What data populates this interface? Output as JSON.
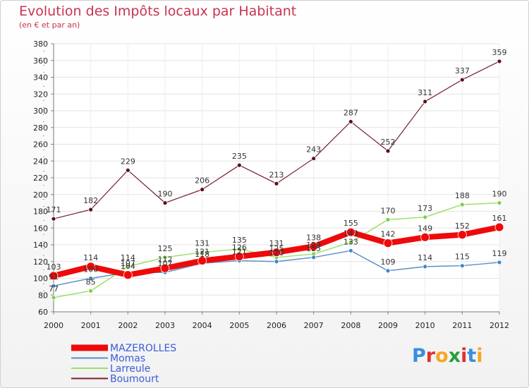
{
  "header": {
    "title": "Evolution des Impôts locaux par Habitant",
    "subtitle": "(en € et par an)"
  },
  "logo": {
    "text": "Proxiti",
    "colors": [
      "#3a8de0",
      "#e03131",
      "#f5a623",
      "#2c9c3b",
      "#e03131",
      "#3a8de0",
      "#f5a623"
    ]
  },
  "chart_data": {
    "type": "line",
    "x": [
      "2000",
      "2001",
      "2002",
      "2003",
      "2004",
      "2005",
      "2006",
      "2007",
      "2008",
      "2009",
      "2010",
      "2011",
      "2012"
    ],
    "ylim": [
      60,
      380
    ],
    "yticks": [
      60,
      80,
      100,
      120,
      140,
      160,
      180,
      200,
      220,
      240,
      260,
      280,
      300,
      320,
      340,
      360,
      380
    ],
    "grid": true,
    "legend_position": "bottom-left",
    "series": [
      {
        "name": "Boumourt",
        "color": "#7a1d2b",
        "dot": "#5a0f1a",
        "width": 1.2,
        "radius": 3,
        "values": [
          171,
          182,
          229,
          190,
          206,
          235,
          213,
          243,
          287,
          252,
          311,
          337,
          359
        ]
      },
      {
        "name": "Larreule",
        "color": "#9be06a",
        "dot": "#7cd046",
        "width": 1.5,
        "radius": 3,
        "values": [
          77,
          85,
          114,
          125,
          131,
          135,
          125,
          129,
          143,
          170,
          173,
          188,
          190
        ]
      },
      {
        "name": "Momas",
        "color": "#5b8fc4",
        "dot": "#3f86c8",
        "width": 1.5,
        "radius": 3,
        "values": [
          91,
          100,
          107,
          107,
          118,
          121,
          120,
          125,
          133,
          109,
          114,
          115,
          119
        ]
      },
      {
        "name": "MAZEROLLES",
        "color": "#ee0a0a",
        "dot": "#ee0a0a",
        "width": 8,
        "radius": 6,
        "values": [
          103,
          114,
          104,
          112,
          121,
          126,
          131,
          138,
          155,
          142,
          149,
          152,
          161
        ]
      }
    ],
    "labels": {
      "Boumourt": [
        "171",
        "182",
        "229",
        "190",
        "206",
        "235",
        "213",
        "243",
        "287",
        "252",
        "311",
        "337",
        "359"
      ],
      "Larreule": [
        "77",
        "85",
        "114",
        "125",
        "131",
        "135",
        "125",
        "129",
        "143",
        "170",
        "173",
        "188",
        "190"
      ],
      "Momas": [
        "91",
        "100",
        "107",
        "107",
        "118",
        "121",
        "120",
        "125",
        "133",
        "109",
        "114",
        "115",
        "119"
      ],
      "MAZEROLLES": [
        "103",
        "114",
        "104",
        "112",
        "121",
        "126",
        "131",
        "138",
        "155",
        "142",
        "149",
        "152",
        "161"
      ]
    },
    "legend": [
      "MAZEROLLES",
      "Momas",
      "Larreule",
      "Boumourt"
    ]
  }
}
